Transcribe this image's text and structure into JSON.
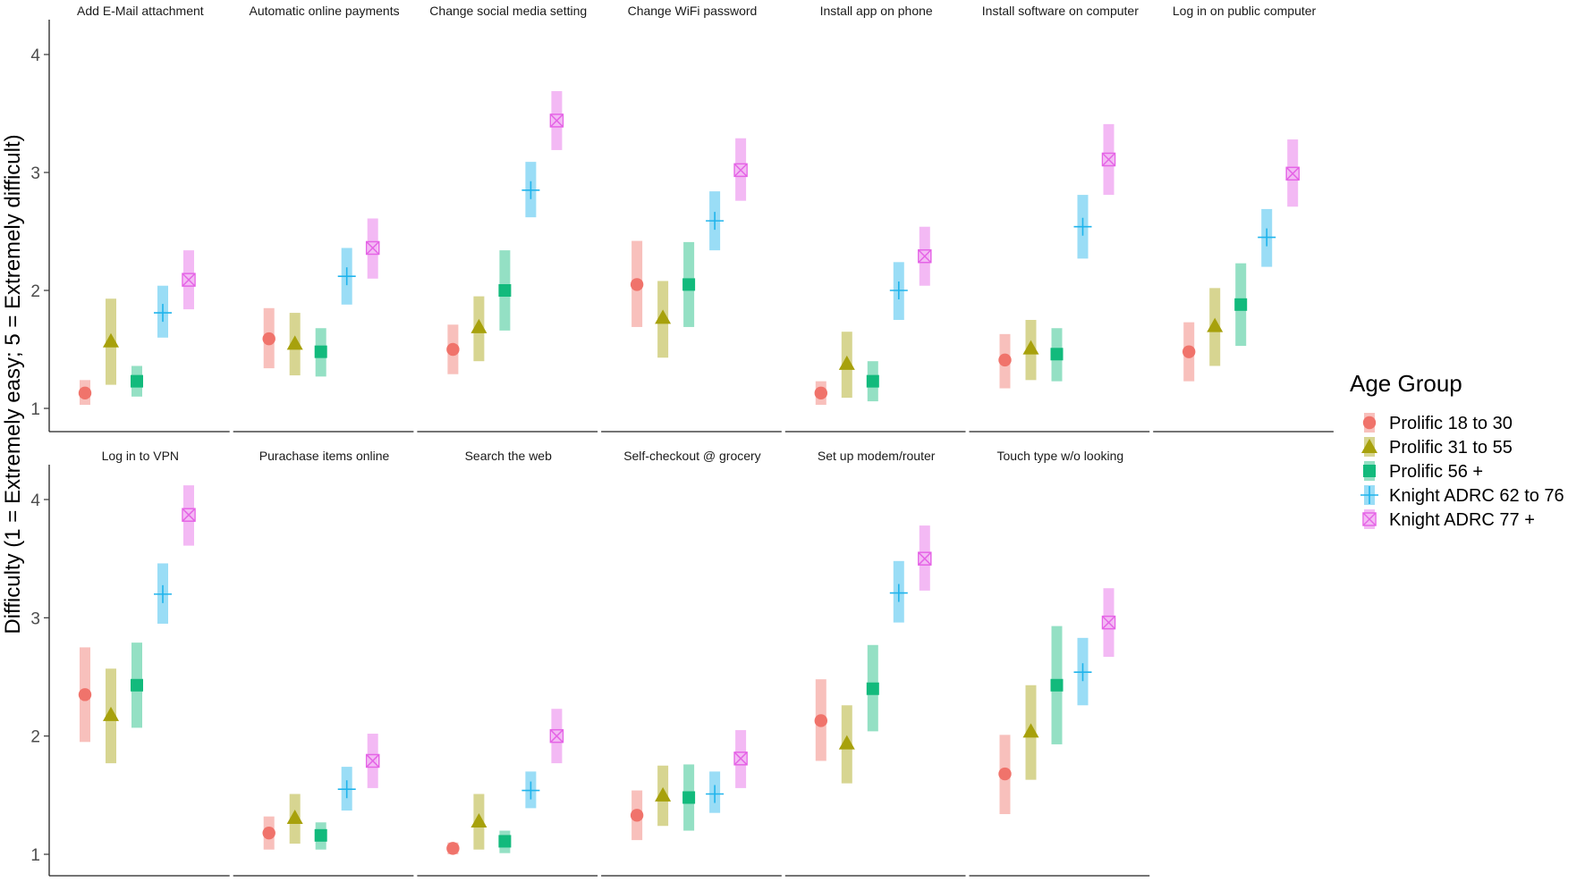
{
  "chart_data": {
    "type": "point-range-facets",
    "ylabel": "Difficulty (1 = Extremely easy; 5 = Extremely difficult)",
    "yticks": [
      1,
      2,
      3,
      4
    ],
    "ylim": [
      0.9,
      4.3
    ],
    "legend": {
      "title": "Age Group",
      "position": "right",
      "items": [
        {
          "label": "Prolific 18 to 30",
          "color": "#F0736B",
          "shape": "circle"
        },
        {
          "label": "Prolific 31 to 55",
          "color": "#A7A10C",
          "shape": "triangle"
        },
        {
          "label": "Prolific 56 +",
          "color": "#12BA7C",
          "shape": "square"
        },
        {
          "label": "Knight ADRC 62 to 76",
          "color": "#20B4EC",
          "shape": "plus"
        },
        {
          "label": "Knight ADRC 77 +",
          "color": "#E564E6",
          "shape": "boxx"
        }
      ]
    },
    "facets": [
      {
        "title": "Add E-Mail attachment",
        "points": [
          {
            "mean": 1.13,
            "lo": 1.03,
            "hi": 1.24
          },
          {
            "mean": 1.57,
            "lo": 1.2,
            "hi": 1.93
          },
          {
            "mean": 1.23,
            "lo": 1.1,
            "hi": 1.36
          },
          {
            "mean": 1.81,
            "lo": 1.6,
            "hi": 2.04
          },
          {
            "mean": 2.09,
            "lo": 1.84,
            "hi": 2.34
          }
        ]
      },
      {
        "title": "Automatic online payments",
        "points": [
          {
            "mean": 1.59,
            "lo": 1.34,
            "hi": 1.85
          },
          {
            "mean": 1.55,
            "lo": 1.28,
            "hi": 1.81
          },
          {
            "mean": 1.48,
            "lo": 1.27,
            "hi": 1.68
          },
          {
            "mean": 2.12,
            "lo": 1.88,
            "hi": 2.36
          },
          {
            "mean": 2.36,
            "lo": 2.1,
            "hi": 2.61
          }
        ]
      },
      {
        "title": "Change social media setting",
        "points": [
          {
            "mean": 1.5,
            "lo": 1.29,
            "hi": 1.71
          },
          {
            "mean": 1.69,
            "lo": 1.4,
            "hi": 1.95
          },
          {
            "mean": 2.0,
            "lo": 1.66,
            "hi": 2.34
          },
          {
            "mean": 2.85,
            "lo": 2.62,
            "hi": 3.09
          },
          {
            "mean": 3.44,
            "lo": 3.19,
            "hi": 3.69
          }
        ]
      },
      {
        "title": "Change WiFi password",
        "points": [
          {
            "mean": 2.05,
            "lo": 1.69,
            "hi": 2.42
          },
          {
            "mean": 1.77,
            "lo": 1.43,
            "hi": 2.08
          },
          {
            "mean": 2.05,
            "lo": 1.69,
            "hi": 2.41
          },
          {
            "mean": 2.59,
            "lo": 2.34,
            "hi": 2.84
          },
          {
            "mean": 3.02,
            "lo": 2.76,
            "hi": 3.29
          }
        ]
      },
      {
        "title": "Install app on phone",
        "points": [
          {
            "mean": 1.13,
            "lo": 1.03,
            "hi": 1.23
          },
          {
            "mean": 1.38,
            "lo": 1.09,
            "hi": 1.65
          },
          {
            "mean": 1.23,
            "lo": 1.06,
            "hi": 1.4
          },
          {
            "mean": 2.0,
            "lo": 1.75,
            "hi": 2.24
          },
          {
            "mean": 2.29,
            "lo": 2.04,
            "hi": 2.54
          }
        ]
      },
      {
        "title": "Install software on computer",
        "points": [
          {
            "mean": 1.41,
            "lo": 1.17,
            "hi": 1.63
          },
          {
            "mean": 1.51,
            "lo": 1.24,
            "hi": 1.75
          },
          {
            "mean": 1.46,
            "lo": 1.23,
            "hi": 1.68
          },
          {
            "mean": 2.54,
            "lo": 2.27,
            "hi": 2.81
          },
          {
            "mean": 3.11,
            "lo": 2.81,
            "hi": 3.41
          }
        ]
      },
      {
        "title": "Log in on public computer",
        "points": [
          {
            "mean": 1.48,
            "lo": 1.23,
            "hi": 1.73
          },
          {
            "mean": 1.7,
            "lo": 1.36,
            "hi": 2.02
          },
          {
            "mean": 1.88,
            "lo": 1.53,
            "hi": 2.23
          },
          {
            "mean": 2.45,
            "lo": 2.2,
            "hi": 2.69
          },
          {
            "mean": 2.99,
            "lo": 2.71,
            "hi": 3.28
          }
        ]
      },
      {
        "title": "Log in to VPN",
        "points": [
          {
            "mean": 2.35,
            "lo": 1.95,
            "hi": 2.75
          },
          {
            "mean": 2.18,
            "lo": 1.77,
            "hi": 2.57
          },
          {
            "mean": 2.43,
            "lo": 2.07,
            "hi": 2.79
          },
          {
            "mean": 3.2,
            "lo": 2.95,
            "hi": 3.46
          },
          {
            "mean": 3.87,
            "lo": 3.61,
            "hi": 4.12
          }
        ]
      },
      {
        "title": "Purachase items online",
        "points": [
          {
            "mean": 1.18,
            "lo": 1.04,
            "hi": 1.32
          },
          {
            "mean": 1.31,
            "lo": 1.09,
            "hi": 1.51
          },
          {
            "mean": 1.16,
            "lo": 1.04,
            "hi": 1.27
          },
          {
            "mean": 1.55,
            "lo": 1.37,
            "hi": 1.74
          },
          {
            "mean": 1.79,
            "lo": 1.56,
            "hi": 2.02
          }
        ]
      },
      {
        "title": "Search the web",
        "points": [
          {
            "mean": 1.05,
            "lo": 1.0,
            "hi": 1.1
          },
          {
            "mean": 1.28,
            "lo": 1.04,
            "hi": 1.51
          },
          {
            "mean": 1.11,
            "lo": 1.01,
            "hi": 1.2
          },
          {
            "mean": 1.54,
            "lo": 1.39,
            "hi": 1.7
          },
          {
            "mean": 2.0,
            "lo": 1.77,
            "hi": 2.23
          }
        ]
      },
      {
        "title": "Self-checkout @ grocery",
        "points": [
          {
            "mean": 1.33,
            "lo": 1.12,
            "hi": 1.54
          },
          {
            "mean": 1.5,
            "lo": 1.24,
            "hi": 1.75
          },
          {
            "mean": 1.48,
            "lo": 1.2,
            "hi": 1.76
          },
          {
            "mean": 1.51,
            "lo": 1.35,
            "hi": 1.7
          },
          {
            "mean": 1.81,
            "lo": 1.56,
            "hi": 2.05
          }
        ]
      },
      {
        "title": "Set up modem/router",
        "points": [
          {
            "mean": 2.13,
            "lo": 1.79,
            "hi": 2.48
          },
          {
            "mean": 1.94,
            "lo": 1.6,
            "hi": 2.26
          },
          {
            "mean": 2.4,
            "lo": 2.04,
            "hi": 2.77
          },
          {
            "mean": 3.21,
            "lo": 2.96,
            "hi": 3.48
          },
          {
            "mean": 3.5,
            "lo": 3.23,
            "hi": 3.78
          }
        ]
      },
      {
        "title": "Touch type w/o looking",
        "points": [
          {
            "mean": 1.68,
            "lo": 1.34,
            "hi": 2.01
          },
          {
            "mean": 2.04,
            "lo": 1.63,
            "hi": 2.43
          },
          {
            "mean": 2.43,
            "lo": 1.93,
            "hi": 2.93
          },
          {
            "mean": 2.54,
            "lo": 2.26,
            "hi": 2.83
          },
          {
            "mean": 2.96,
            "lo": 2.67,
            "hi": 3.25
          }
        ]
      }
    ]
  }
}
